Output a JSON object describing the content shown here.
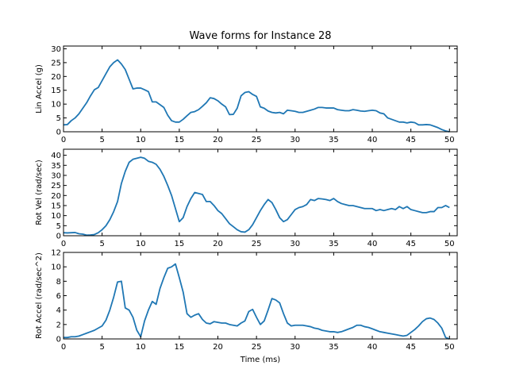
{
  "figure": {
    "title": "Wave forms for Instance 28",
    "line_color": "#1f77b4",
    "axis_color": "#000000"
  },
  "chart_data": [
    {
      "type": "line",
      "title": "Wave forms for Instance 28",
      "xlabel": "",
      "ylabel": "Lin Accel (g)",
      "xlim": [
        0,
        51
      ],
      "ylim": [
        0,
        31
      ],
      "xticks": [
        0,
        5,
        10,
        15,
        20,
        25,
        30,
        35,
        40,
        45,
        50
      ],
      "yticks": [
        0,
        5,
        10,
        15,
        20,
        25,
        30
      ],
      "grid": false,
      "x": [
        0,
        0.5,
        1,
        1.5,
        2,
        2.5,
        3,
        3.5,
        4,
        4.5,
        5,
        5.5,
        6,
        6.5,
        7,
        7.5,
        8,
        8.5,
        9,
        9.5,
        10,
        10.5,
        11,
        11.5,
        12,
        12.5,
        13,
        13.5,
        14,
        14.5,
        15,
        15.5,
        16,
        16.5,
        17,
        17.5,
        18,
        18.5,
        19,
        19.5,
        20,
        20.5,
        21,
        21.5,
        22,
        22.5,
        23,
        23.5,
        24,
        24.5,
        25,
        25.5,
        26,
        26.5,
        27,
        27.5,
        28,
        28.5,
        29,
        29.5,
        30,
        30.5,
        31,
        31.5,
        32,
        32.5,
        33,
        33.5,
        34,
        34.5,
        35,
        35.5,
        36,
        36.5,
        37,
        37.5,
        38,
        38.5,
        39,
        39.5,
        40,
        40.5,
        41,
        41.5,
        42,
        42.5,
        43,
        43.5,
        44,
        44.5,
        45,
        45.5,
        46,
        46.5,
        47,
        47.5,
        48,
        48.5,
        49,
        49.5,
        50
      ],
      "values": [
        2.5,
        2.6,
        4,
        5,
        6.5,
        8.5,
        10.5,
        13,
        15.2,
        16,
        18.5,
        21,
        23.5,
        25,
        26,
        24.5,
        22.5,
        19,
        15.5,
        15.8,
        15.8,
        15.2,
        14.5,
        10.8,
        10.8,
        9.8,
        8.8,
        6,
        4,
        3.5,
        3.5,
        4.5,
        5.8,
        7,
        7.3,
        8,
        9.2,
        10.5,
        12.3,
        12,
        11.2,
        10,
        9,
        6.2,
        6.3,
        8.5,
        13,
        14.2,
        14.5,
        13.5,
        12.8,
        9,
        8.5,
        7.5,
        7,
        6.8,
        7,
        6.5,
        7.8,
        7.6,
        7.4,
        7,
        7,
        7.4,
        7.8,
        8.2,
        8.8,
        8.8,
        8.6,
        8.6,
        8.6,
        8,
        7.8,
        7.6,
        7.6,
        8,
        7.8,
        7.5,
        7.4,
        7.6,
        7.8,
        7.6,
        6.8,
        6.5,
        5,
        4.5,
        4,
        3.5,
        3.5,
        3.2,
        3.5,
        3.3,
        2.5,
        2.5,
        2.6,
        2.5,
        2,
        1.5,
        0.8,
        0.3,
        0
      ]
    },
    {
      "type": "line",
      "xlabel": "",
      "ylabel": "Rot Vel (rad/sec)",
      "xlim": [
        0,
        51
      ],
      "ylim": [
        0,
        43
      ],
      "xticks": [
        0,
        5,
        10,
        15,
        20,
        25,
        30,
        35,
        40,
        45,
        50
      ],
      "yticks": [
        0,
        5,
        10,
        15,
        20,
        25,
        30,
        35,
        40
      ],
      "grid": false,
      "x": [
        0,
        0.5,
        1,
        1.5,
        2,
        2.5,
        3,
        3.5,
        4,
        4.5,
        5,
        5.5,
        6,
        6.5,
        7,
        7.5,
        8,
        8.5,
        9,
        9.5,
        10,
        10.5,
        11,
        11.5,
        12,
        12.5,
        13,
        13.5,
        14,
        14.5,
        15,
        15.5,
        16,
        16.5,
        17,
        17.5,
        18,
        18.5,
        19,
        19.5,
        20,
        20.5,
        21,
        21.5,
        22,
        22.5,
        23,
        23.5,
        24,
        24.5,
        25,
        25.5,
        26,
        26.5,
        27,
        27.5,
        28,
        28.5,
        29,
        29.5,
        30,
        30.5,
        31,
        31.5,
        32,
        32.5,
        33,
        33.5,
        34,
        34.5,
        35,
        35.5,
        36,
        36.5,
        37,
        37.5,
        38,
        38.5,
        39,
        39.5,
        40,
        40.5,
        41,
        41.5,
        42,
        42.5,
        43,
        43.5,
        44,
        44.5,
        45,
        45.5,
        46,
        46.5,
        47,
        47.5,
        48,
        48.5,
        49,
        49.5,
        50
      ],
      "values": [
        1.5,
        1.4,
        1.5,
        1.6,
        1,
        0.8,
        0.3,
        0.4,
        0.6,
        1.5,
        3,
        5,
        8,
        12,
        17,
        26,
        32,
        36.5,
        38,
        38.5,
        39,
        38.5,
        37,
        36.5,
        35.5,
        33,
        29.5,
        25,
        20,
        13.5,
        7,
        9,
        14.5,
        18.5,
        21.5,
        21,
        20.5,
        17,
        17,
        15,
        12.5,
        11,
        8.5,
        6,
        4.5,
        3,
        2,
        1.8,
        3,
        5.5,
        9,
        12.5,
        15.5,
        18,
        16.5,
        13,
        9,
        7,
        8,
        10.5,
        13,
        14,
        14.5,
        15.5,
        18,
        17.5,
        18.5,
        18.3,
        18,
        17.5,
        18.5,
        17,
        16,
        15.5,
        15,
        15,
        14.5,
        14,
        13.5,
        13.5,
        13.5,
        12.5,
        13,
        12.5,
        13,
        13.5,
        13,
        14.5,
        13.5,
        14.5,
        13,
        12.5,
        12,
        11.5,
        11.5,
        12,
        12,
        14,
        14,
        15,
        14
      ]
    },
    {
      "type": "line",
      "xlabel": "Time (ms)",
      "ylabel": "Rot Accel (rad/sec^2)",
      "xlim": [
        0,
        51
      ],
      "ylim": [
        0,
        12
      ],
      "xticks": [
        0,
        5,
        10,
        15,
        20,
        25,
        30,
        35,
        40,
        45,
        50
      ],
      "yticks": [
        0,
        2,
        4,
        6,
        8,
        10,
        12
      ],
      "grid": false,
      "x": [
        0,
        0.5,
        1,
        1.5,
        2,
        2.5,
        3,
        3.5,
        4,
        4.5,
        5,
        5.5,
        6,
        6.5,
        7,
        7.5,
        8,
        8.5,
        9,
        9.5,
        10,
        10.5,
        11,
        11.5,
        12,
        12.5,
        13,
        13.5,
        14,
        14.5,
        15,
        15.5,
        16,
        16.5,
        17,
        17.5,
        18,
        18.5,
        19,
        19.5,
        20,
        20.5,
        21,
        21.5,
        22,
        22.5,
        23,
        23.5,
        24,
        24.5,
        25,
        25.5,
        26,
        26.5,
        27,
        27.5,
        28,
        28.5,
        29,
        29.5,
        30,
        30.5,
        31,
        31.5,
        32,
        32.5,
        33,
        33.5,
        34,
        34.5,
        35,
        35.5,
        36,
        36.5,
        37,
        37.5,
        38,
        38.5,
        39,
        39.5,
        40,
        40.5,
        41,
        41.5,
        42,
        42.5,
        43,
        43.5,
        44,
        44.5,
        45,
        45.5,
        46,
        46.5,
        47,
        47.5,
        48,
        48.5,
        49,
        49.5,
        50
      ],
      "values": [
        0.2,
        0.2,
        0.3,
        0.3,
        0.4,
        0.6,
        0.8,
        1,
        1.2,
        1.5,
        1.8,
        2.6,
        4,
        5.8,
        7.9,
        8,
        4.3,
        4,
        3,
        1.2,
        0.3,
        2.5,
        4,
        5.2,
        4.8,
        7,
        8.5,
        9.8,
        10,
        10.4,
        8.5,
        6.5,
        3.5,
        3,
        3.3,
        3.5,
        2.7,
        2.2,
        2.1,
        2.4,
        2.3,
        2.2,
        2.2,
        2,
        1.9,
        1.8,
        2.2,
        2.5,
        3.8,
        4.1,
        3,
        2,
        2.5,
        4,
        5.6,
        5.4,
        5,
        3.5,
        2.2,
        1.8,
        1.9,
        1.9,
        1.9,
        1.8,
        1.7,
        1.5,
        1.4,
        1.2,
        1.1,
        1,
        1,
        0.9,
        1,
        1.2,
        1.4,
        1.6,
        1.9,
        1.9,
        1.7,
        1.6,
        1.4,
        1.2,
        1,
        0.9,
        0.8,
        0.7,
        0.6,
        0.5,
        0.4,
        0.5,
        0.9,
        1.3,
        1.8,
        2.4,
        2.8,
        2.9,
        2.7,
        2.2,
        1.5,
        0.2,
        0
      ]
    }
  ]
}
